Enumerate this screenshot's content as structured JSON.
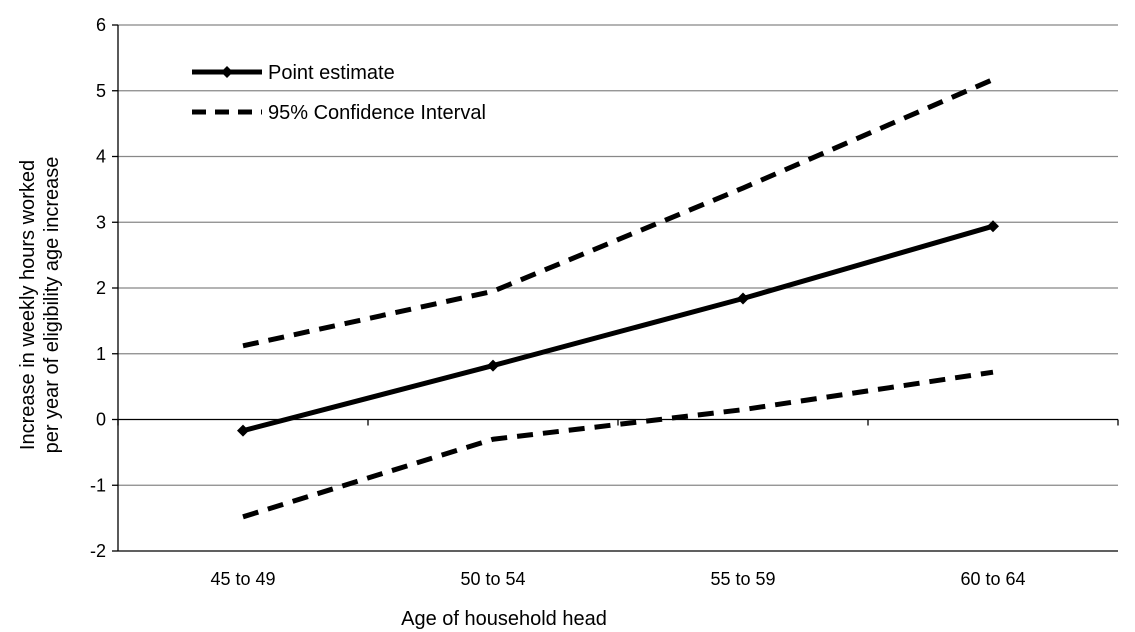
{
  "chart_data": {
    "type": "line",
    "title": "",
    "xlabel": "Age of household head",
    "ylabel_lines": [
      "Increase in weekly hours worked",
      "per year of  eligibility age increase"
    ],
    "categories": [
      "45 to 49",
      "50 to 54",
      "55 to 59",
      "60 to 64"
    ],
    "ylim": [
      -2,
      6
    ],
    "yticks": [
      -2,
      -1,
      0,
      1,
      2,
      3,
      4,
      5,
      6
    ],
    "grid": true,
    "legend_position": "top-left",
    "series": [
      {
        "name": "Point estimate",
        "values": [
          -0.17,
          0.82,
          1.84,
          2.94
        ],
        "style": "solid",
        "marker": "diamond",
        "color": "#000000"
      },
      {
        "name": "95% Confidence Interval",
        "values": [
          1.12,
          1.95,
          3.52,
          5.17
        ],
        "style": "dashed",
        "marker": "none",
        "color": "#000000"
      },
      {
        "name": "95% Confidence Interval",
        "values": [
          -1.48,
          -0.3,
          0.15,
          0.72
        ],
        "style": "dashed",
        "marker": "none",
        "color": "#000000"
      }
    ]
  }
}
